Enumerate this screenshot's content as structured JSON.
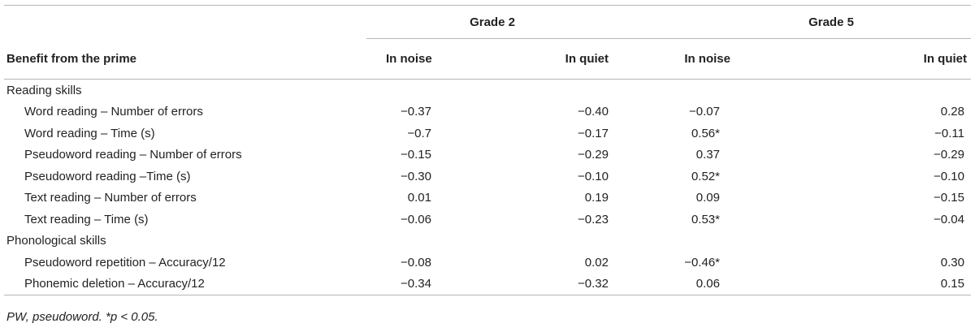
{
  "table": {
    "header": {
      "row_label_header": "Benefit from the prime",
      "groups": [
        {
          "label": "Grade 2",
          "columns": [
            "In noise",
            "In quiet"
          ]
        },
        {
          "label": "Grade 5",
          "columns": [
            "In noise",
            "In quiet"
          ]
        }
      ]
    },
    "sections": [
      {
        "title": "Reading skills",
        "rows": [
          {
            "label": "Word reading – Number of errors",
            "values": [
              "−0.37",
              "−0.40",
              "−0.07",
              "0.28"
            ]
          },
          {
            "label": "Word reading – Time (s)",
            "values": [
              "−0.7",
              "−0.17",
              "0.56*",
              "−0.11"
            ]
          },
          {
            "label": "Pseudoword reading – Number of errors",
            "values": [
              "−0.15",
              "−0.29",
              "0.37",
              "−0.29"
            ]
          },
          {
            "label": "Pseudoword reading –Time (s)",
            "values": [
              "−0.30",
              "−0.10",
              "0.52*",
              "−0.10"
            ]
          },
          {
            "label": "Text reading – Number of errors",
            "values": [
              "0.01",
              "0.19",
              "0.09",
              "−0.15"
            ]
          },
          {
            "label": "Text reading – Time (s)",
            "values": [
              "−0.06",
              "−0.23",
              "0.53*",
              "−0.04"
            ]
          }
        ]
      },
      {
        "title": "Phonological skills",
        "rows": [
          {
            "label": "Pseudoword repetition – Accuracy/12",
            "values": [
              "−0.08",
              "0.02",
              "−0.46*",
              "0.30"
            ]
          },
          {
            "label": "Phonemic deletion – Accuracy/12",
            "values": [
              "−0.34",
              "−0.32",
              "0.06",
              "0.15"
            ]
          }
        ]
      }
    ],
    "footnote": "PW, pseudoword. *p < 0.05."
  }
}
